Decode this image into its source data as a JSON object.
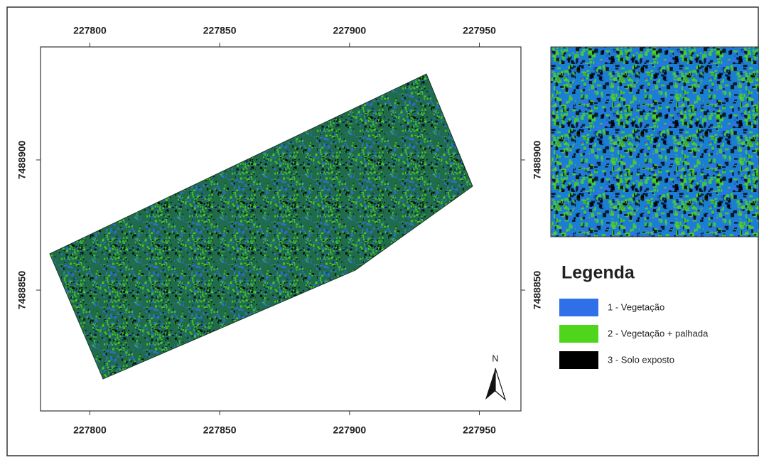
{
  "map": {
    "xlim": [
      227781,
      227966
    ],
    "ylim": [
      7488803.6,
      7488943.4
    ],
    "xticks": [
      227800,
      227850,
      227900,
      227950
    ],
    "yticks": [
      7488850,
      7488900
    ],
    "north": "N",
    "legend": {
      "title": "Legenda",
      "items": [
        {
          "label": "1 - Vegetação",
          "color": "#2f6fe8"
        },
        {
          "label": "2 - Vegetação + palhada",
          "color": "#4fd61c"
        },
        {
          "label": "3 - Solo exposto",
          "color": "#000000"
        }
      ]
    }
  }
}
